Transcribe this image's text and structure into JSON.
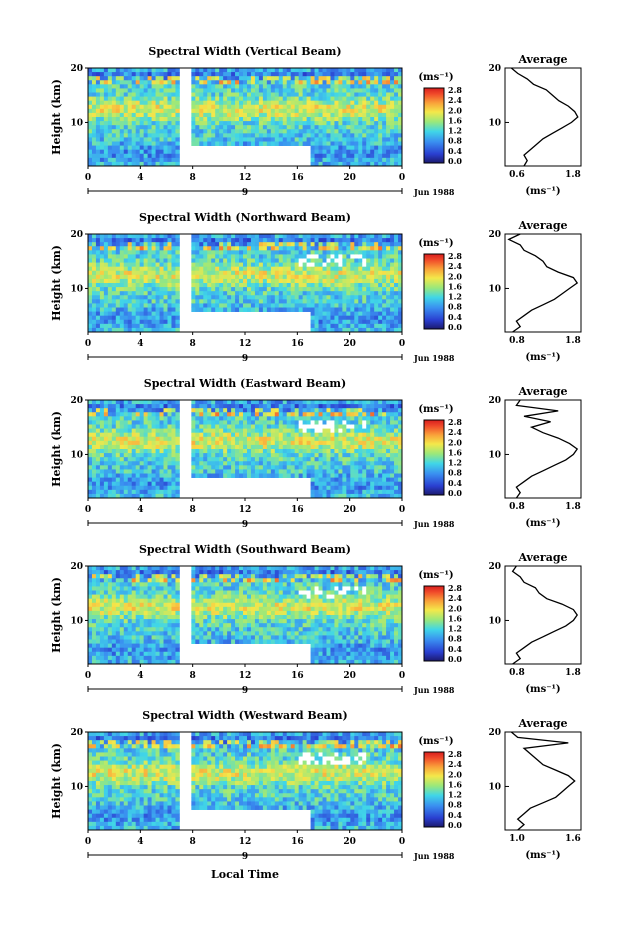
{
  "figure": {
    "shared_xlabel": "Local Time",
    "avg_title": "Average",
    "unit_label": "(ms⁻¹)",
    "height_label": "Height (km)",
    "date_label": "Jun 1988",
    "day_marker": "9"
  },
  "chart_data": [
    {
      "type": "heatmap",
      "title": "Spectral Width (Vertical Beam)",
      "xlabel": "",
      "ylabel": "Height (km)",
      "xticks": [
        "0",
        "4",
        "8",
        "12",
        "16",
        "20",
        "0"
      ],
      "yticks": [
        "10",
        "20"
      ],
      "colorbar": {
        "label": "(ms⁻¹)",
        "ticks": [
          "0.0",
          "0.4",
          "0.8",
          "1.2",
          "1.6",
          "2.0",
          "2.4",
          "2.8"
        ]
      },
      "average": {
        "title": "Average",
        "xticks": [
          "0.6",
          "1.8"
        ],
        "xlim": [
          0.6,
          1.8
        ],
        "yticks": [
          "10",
          "20"
        ],
        "xlabel": "(ms⁻¹)",
        "profile": [
          [
            0.9,
            2
          ],
          [
            0.95,
            3
          ],
          [
            0.9,
            4
          ],
          [
            1.0,
            5
          ],
          [
            1.1,
            6
          ],
          [
            1.2,
            7
          ],
          [
            1.35,
            8
          ],
          [
            1.5,
            9
          ],
          [
            1.65,
            10
          ],
          [
            1.75,
            11
          ],
          [
            1.7,
            12
          ],
          [
            1.6,
            13
          ],
          [
            1.45,
            14
          ],
          [
            1.35,
            15
          ],
          [
            1.25,
            16
          ],
          [
            1.05,
            17
          ],
          [
            0.95,
            18
          ],
          [
            0.8,
            19
          ],
          [
            0.7,
            20
          ]
        ]
      }
    },
    {
      "type": "heatmap",
      "title": "Spectral Width (Northward Beam)",
      "xlabel": "",
      "ylabel": "Height (km)",
      "xticks": [
        "0",
        "4",
        "8",
        "12",
        "16",
        "20",
        "0"
      ],
      "yticks": [
        "10",
        "20"
      ],
      "colorbar": {
        "label": "(ms⁻¹)",
        "ticks": [
          "0.0",
          "0.4",
          "0.8",
          "1.2",
          "1.6",
          "2.0",
          "2.4",
          "2.8"
        ]
      },
      "average": {
        "title": "Average",
        "xticks": [
          "0.8",
          "1.8"
        ],
        "xlim": [
          0.8,
          1.8
        ],
        "yticks": [
          "10",
          "20"
        ],
        "xlabel": "(ms⁻¹)",
        "profile": [
          [
            0.9,
            2
          ],
          [
            1.0,
            3
          ],
          [
            0.95,
            4
          ],
          [
            1.05,
            5
          ],
          [
            1.15,
            6
          ],
          [
            1.3,
            7
          ],
          [
            1.45,
            8
          ],
          [
            1.55,
            9
          ],
          [
            1.65,
            10
          ],
          [
            1.75,
            11
          ],
          [
            1.7,
            12
          ],
          [
            1.5,
            13
          ],
          [
            1.35,
            14
          ],
          [
            1.3,
            15
          ],
          [
            1.2,
            16
          ],
          [
            1.05,
            17
          ],
          [
            1.0,
            18
          ],
          [
            0.85,
            19
          ],
          [
            1.0,
            20
          ]
        ]
      }
    },
    {
      "type": "heatmap",
      "title": "Spectral Width (Eastward Beam)",
      "xlabel": "",
      "ylabel": "Height (km)",
      "xticks": [
        "0",
        "4",
        "8",
        "12",
        "16",
        "20",
        "0"
      ],
      "yticks": [
        "10",
        "20"
      ],
      "colorbar": {
        "label": "(ms⁻¹)",
        "ticks": [
          "0.0",
          "0.4",
          "0.8",
          "1.2",
          "1.6",
          "2.0",
          "2.4",
          "2.8"
        ]
      },
      "average": {
        "title": "Average",
        "xticks": [
          "0.8",
          "1.8"
        ],
        "xlim": [
          0.8,
          1.8
        ],
        "yticks": [
          "10",
          "20"
        ],
        "xlabel": "(ms⁻¹)",
        "profile": [
          [
            0.95,
            2
          ],
          [
            1.0,
            3
          ],
          [
            0.95,
            4
          ],
          [
            1.05,
            5
          ],
          [
            1.15,
            6
          ],
          [
            1.3,
            7
          ],
          [
            1.45,
            8
          ],
          [
            1.6,
            9
          ],
          [
            1.7,
            10
          ],
          [
            1.75,
            11
          ],
          [
            1.65,
            12
          ],
          [
            1.5,
            13
          ],
          [
            1.3,
            14
          ],
          [
            1.15,
            15
          ],
          [
            1.4,
            16
          ],
          [
            1.05,
            17
          ],
          [
            1.5,
            18
          ],
          [
            0.95,
            19
          ],
          [
            1.0,
            20
          ]
        ]
      }
    },
    {
      "type": "heatmap",
      "title": "Spectral Width (Southward Beam)",
      "xlabel": "",
      "ylabel": "Height (km)",
      "xticks": [
        "0",
        "4",
        "8",
        "12",
        "16",
        "20",
        "0"
      ],
      "yticks": [
        "10",
        "20"
      ],
      "colorbar": {
        "label": "(ms⁻¹)",
        "ticks": [
          "0.0",
          "0.4",
          "0.8",
          "1.2",
          "1.6",
          "2.0",
          "2.4",
          "2.8"
        ]
      },
      "average": {
        "title": "Average",
        "xticks": [
          "0.8",
          "1.8"
        ],
        "xlim": [
          0.8,
          1.8
        ],
        "yticks": [
          "10",
          "20"
        ],
        "xlabel": "(ms⁻¹)",
        "profile": [
          [
            0.9,
            2
          ],
          [
            1.0,
            3
          ],
          [
            0.95,
            4
          ],
          [
            1.05,
            5
          ],
          [
            1.15,
            6
          ],
          [
            1.3,
            7
          ],
          [
            1.45,
            8
          ],
          [
            1.6,
            9
          ],
          [
            1.7,
            10
          ],
          [
            1.75,
            11
          ],
          [
            1.7,
            12
          ],
          [
            1.55,
            13
          ],
          [
            1.35,
            14
          ],
          [
            1.25,
            15
          ],
          [
            1.2,
            16
          ],
          [
            1.05,
            17
          ],
          [
            1.0,
            18
          ],
          [
            0.9,
            19
          ],
          [
            0.95,
            20
          ]
        ]
      }
    },
    {
      "type": "heatmap",
      "title": "Spectral Width (Westward Beam)",
      "xlabel": "",
      "ylabel": "Height (km)",
      "xticks": [
        "0",
        "4",
        "8",
        "12",
        "16",
        "20",
        "0"
      ],
      "yticks": [
        "10",
        "20"
      ],
      "colorbar": {
        "label": "(ms⁻¹)",
        "ticks": [
          "0.0",
          "0.4",
          "0.8",
          "1.2",
          "1.6",
          "2.0",
          "2.4",
          "2.8"
        ]
      },
      "average": {
        "title": "Average",
        "xticks": [
          "1.0",
          "1.6"
        ],
        "xlim": [
          1.0,
          1.6
        ],
        "yticks": [
          "10",
          "20"
        ],
        "xlabel": "(ms⁻¹)",
        "profile": [
          [
            1.1,
            2
          ],
          [
            1.15,
            3
          ],
          [
            1.1,
            4
          ],
          [
            1.15,
            5
          ],
          [
            1.2,
            6
          ],
          [
            1.3,
            7
          ],
          [
            1.4,
            8
          ],
          [
            1.45,
            9
          ],
          [
            1.5,
            10
          ],
          [
            1.55,
            11
          ],
          [
            1.5,
            12
          ],
          [
            1.4,
            13
          ],
          [
            1.3,
            14
          ],
          [
            1.25,
            15
          ],
          [
            1.2,
            16
          ],
          [
            1.15,
            17
          ],
          [
            1.5,
            18
          ],
          [
            1.1,
            19
          ],
          [
            1.05,
            20
          ]
        ]
      }
    }
  ]
}
